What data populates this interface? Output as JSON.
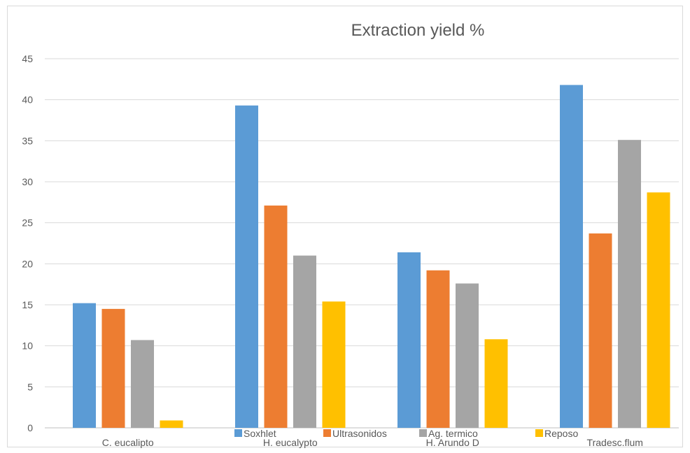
{
  "chart_data": {
    "type": "bar",
    "title": "Extraction yield %",
    "xlabel": "",
    "ylabel": "",
    "categories": [
      "C. eucalipto",
      "H. eucalypto",
      "H. Arundo D",
      "Tradesc.flum"
    ],
    "series": [
      {
        "name": "Soxhlet",
        "color": "#5B9BD5",
        "values": [
          15.2,
          39.3,
          21.4,
          41.8
        ]
      },
      {
        "name": "Ultrasonidos",
        "color": "#ED7D31",
        "values": [
          14.5,
          27.1,
          19.2,
          23.7
        ]
      },
      {
        "name": "Ag. termico",
        "color": "#A5A5A5",
        "values": [
          10.7,
          21.0,
          17.6,
          35.1
        ]
      },
      {
        "name": "Reposo",
        "color": "#FFC000",
        "values": [
          0.9,
          15.4,
          10.8,
          28.7
        ]
      }
    ],
    "ylim": [
      0,
      45
    ],
    "yticks": [
      "0",
      "5",
      "10",
      "15",
      "20",
      "25",
      "30",
      "35",
      "40",
      "45"
    ],
    "grid": true,
    "legend_position": "bottom"
  }
}
